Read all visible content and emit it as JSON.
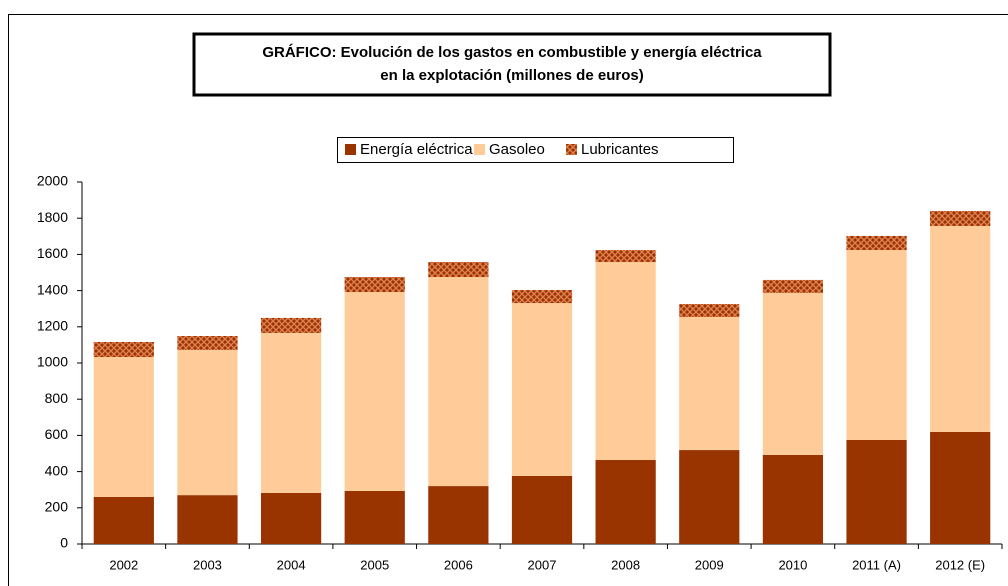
{
  "chart_data": {
    "type": "stacked_bar",
    "title": [
      "GRÁFICO: Evolución de los gastos en combustible y energía eléctrica",
      "en la explotación (millones de euros)"
    ],
    "categories": [
      "2002",
      "2003",
      "2004",
      "2005",
      "2006",
      "2007",
      "2008",
      "2009",
      "2010",
      "2011 (A)",
      "2012 (E)"
    ],
    "series": [
      {
        "name": "Energía eléctrica",
        "color": "#993300",
        "values": [
          260,
          270,
          282,
          293,
          320,
          376,
          464,
          519,
          492,
          575,
          619
        ]
      },
      {
        "name": "Gasoleo",
        "color": "#ffcc99",
        "values": [
          773,
          802,
          884,
          1099,
          1155,
          955,
          1094,
          735,
          895,
          1049,
          1138
        ]
      },
      {
        "name": "Lubricantes",
        "color": "#cc6633",
        "values": [
          83,
          77,
          83,
          83,
          83,
          72,
          66,
          72,
          72,
          78,
          83
        ]
      }
    ],
    "ylim": [
      0,
      2000
    ],
    "yticks": [
      0,
      200,
      400,
      600,
      800,
      1000,
      1200,
      1400,
      1600,
      1800,
      2000
    ],
    "grid": false
  }
}
